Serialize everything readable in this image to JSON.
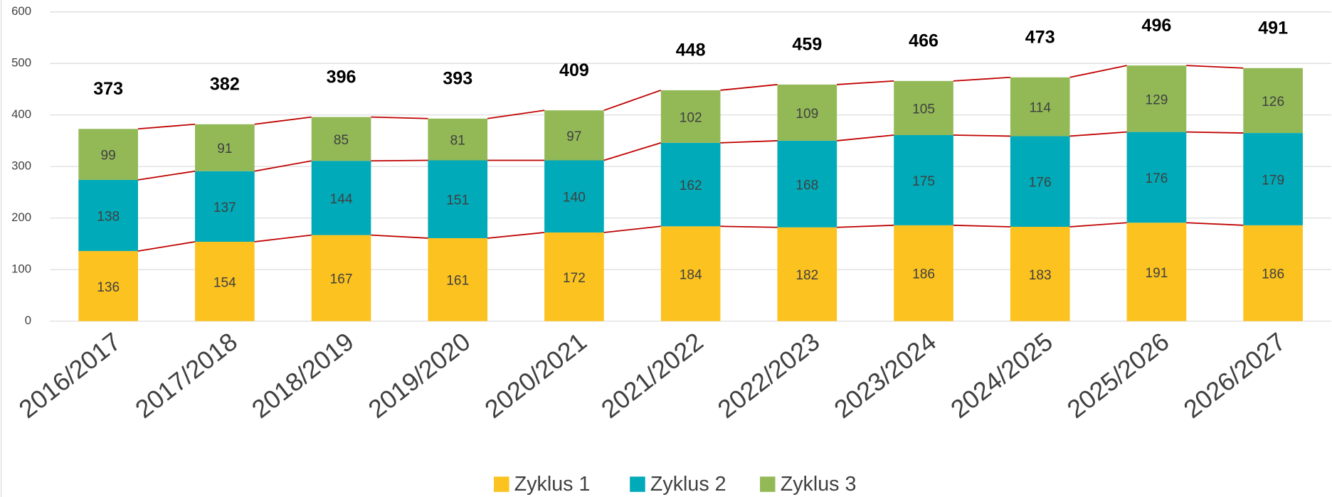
{
  "chart_data": {
    "type": "stacked_bar",
    "categories": [
      "2016/2017",
      "2017/2018",
      "2018/2019",
      "2019/2020",
      "2020/2021",
      "2021/2022",
      "2022/2023",
      "2023/2024",
      "2024/2025",
      "2025/2026",
      "2026/2027"
    ],
    "series": [
      {
        "name": "Zyklus 1",
        "color": "#fcc21f",
        "values": [
          136,
          154,
          167,
          161,
          172,
          184,
          182,
          186,
          183,
          191,
          186
        ]
      },
      {
        "name": "Zyklus 2",
        "color": "#00aab8",
        "values": [
          138,
          137,
          144,
          151,
          140,
          162,
          168,
          175,
          176,
          176,
          179
        ]
      },
      {
        "name": "Zyklus 3",
        "color": "#93b957",
        "values": [
          99,
          91,
          85,
          81,
          97,
          102,
          109,
          105,
          114,
          129,
          126
        ]
      }
    ],
    "totals": [
      373,
      382,
      396,
      393,
      409,
      448,
      459,
      466,
      473,
      496,
      491
    ],
    "connector_color": "#c00000",
    "ylim": [
      0,
      600
    ],
    "yticks": [
      0,
      100,
      200,
      300,
      400,
      500,
      600
    ],
    "grid": true,
    "legend": "bottom"
  }
}
